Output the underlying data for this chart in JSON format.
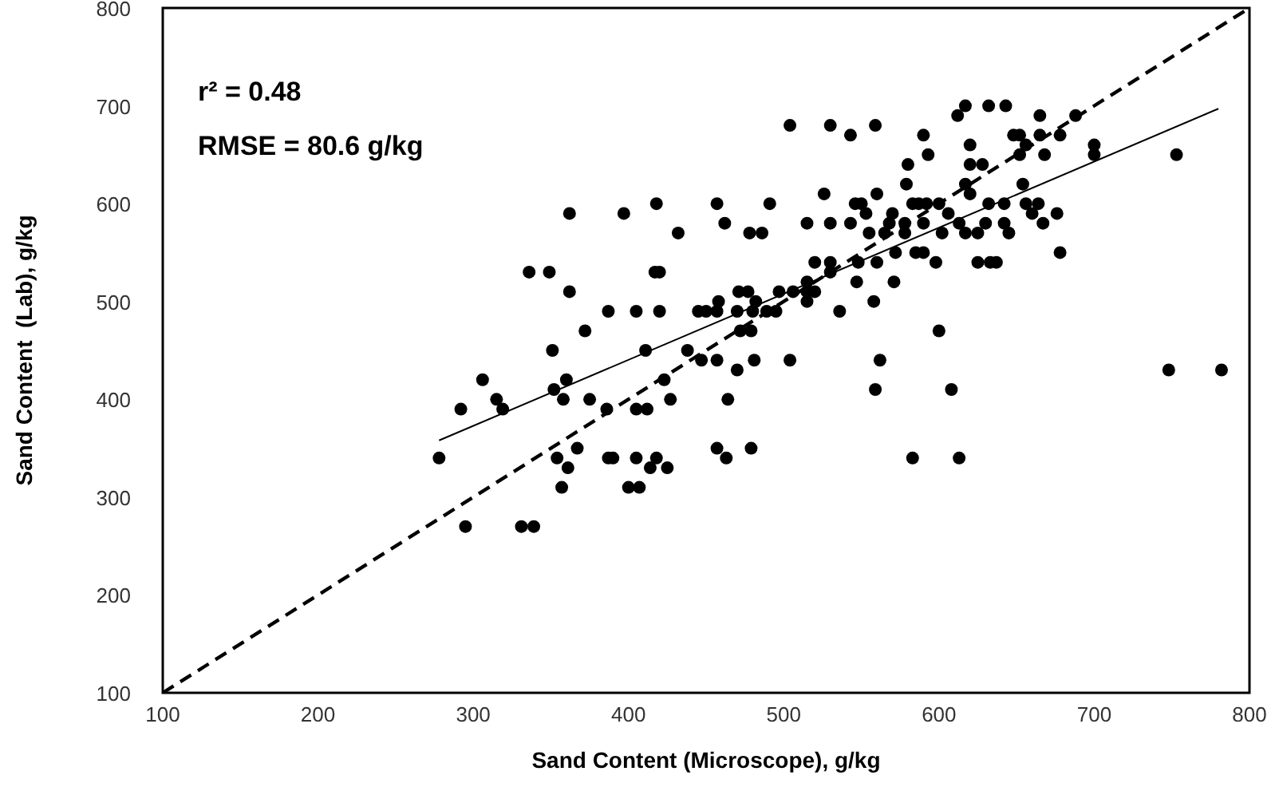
{
  "chart_data": {
    "type": "scatter",
    "xlabel": "Sand Content (Microscope), g/kg",
    "ylabel": "Sand Content  (Lab), g/kg",
    "annotations": [
      "r² = 0.48",
      "RMSE = 80.6 g/kg"
    ],
    "xlim": [
      100,
      800
    ],
    "ylim": [
      100,
      800
    ],
    "xticks": [
      100,
      200,
      300,
      400,
      500,
      600,
      700,
      800
    ],
    "yticks": [
      100,
      200,
      300,
      400,
      500,
      600,
      700,
      800
    ],
    "grid": false,
    "series": [
      {
        "color": "#000000",
        "marker": "circle",
        "x": [
          617,
          632,
          643,
          612,
          665,
          688,
          504,
          530,
          559,
          543,
          590,
          648,
          652,
          665,
          678,
          620,
          656,
          700,
          593,
          652,
          668,
          700,
          753,
          580,
          620,
          628,
          579,
          617,
          654,
          526,
          560,
          620,
          418,
          457,
          491,
          546,
          550,
          583,
          587,
          592,
          600,
          632,
          642,
          656,
          664,
          362,
          397,
          553,
          570,
          606,
          660,
          676,
          462,
          515,
          530,
          543,
          568,
          578,
          590,
          613,
          630,
          642,
          667,
          432,
          478,
          486,
          555,
          565,
          578,
          602,
          617,
          625,
          645,
          572,
          585,
          590,
          678,
          520,
          530,
          548,
          560,
          598,
          625,
          633,
          637,
          336,
          349,
          417,
          420,
          530,
          515,
          547,
          571,
          362,
          471,
          477,
          497,
          506,
          515,
          520,
          458,
          482,
          515,
          558,
          387,
          405,
          420,
          445,
          450,
          457,
          470,
          480,
          489,
          495,
          536,
          372,
          472,
          479,
          600,
          351,
          411,
          438,
          447,
          457,
          481,
          504,
          562,
          470,
          748,
          782,
          306,
          360,
          423,
          352,
          559,
          608,
          315,
          358,
          375,
          427,
          464,
          292,
          319,
          386,
          405,
          412,
          367,
          457,
          479,
          278,
          354,
          387,
          390,
          405,
          418,
          463,
          583,
          613,
          361,
          414,
          425,
          357,
          400,
          407,
          295,
          331,
          339
        ],
        "values": [
          700,
          700,
          700,
          690,
          690,
          690,
          680,
          680,
          680,
          670,
          670,
          670,
          670,
          670,
          670,
          660,
          660,
          660,
          650,
          650,
          650,
          650,
          650,
          640,
          640,
          640,
          620,
          620,
          620,
          610,
          610,
          610,
          600,
          600,
          600,
          600,
          600,
          600,
          600,
          600,
          600,
          600,
          600,
          600,
          600,
          590,
          590,
          590,
          590,
          590,
          590,
          590,
          580,
          580,
          580,
          580,
          580,
          580,
          580,
          580,
          580,
          580,
          580,
          570,
          570,
          570,
          570,
          570,
          570,
          570,
          570,
          570,
          570,
          550,
          550,
          550,
          550,
          540,
          540,
          540,
          540,
          540,
          540,
          540,
          540,
          530,
          530,
          530,
          530,
          530,
          520,
          520,
          520,
          510,
          510,
          510,
          510,
          510,
          510,
          510,
          500,
          500,
          500,
          500,
          490,
          490,
          490,
          490,
          490,
          490,
          490,
          490,
          490,
          490,
          490,
          470,
          470,
          470,
          470,
          450,
          450,
          450,
          440,
          440,
          440,
          440,
          440,
          430,
          430,
          430,
          420,
          420,
          420,
          410,
          410,
          410,
          400,
          400,
          400,
          400,
          400,
          390,
          390,
          390,
          390,
          390,
          350,
          350,
          350,
          340,
          340,
          340,
          340,
          340,
          340,
          340,
          340,
          340,
          330,
          330,
          330,
          310,
          310,
          310,
          270,
          270,
          270
        ]
      },
      {
        "type": "line",
        "color": "#000000",
        "line_style": "solid",
        "marker": "none",
        "x": [
          278,
          780
        ],
        "values": [
          358,
          697
        ]
      },
      {
        "type": "line",
        "color": "#000000",
        "line_style": "dashed",
        "marker": "none",
        "x": [
          100,
          800
        ],
        "values": [
          100,
          800
        ]
      }
    ]
  }
}
